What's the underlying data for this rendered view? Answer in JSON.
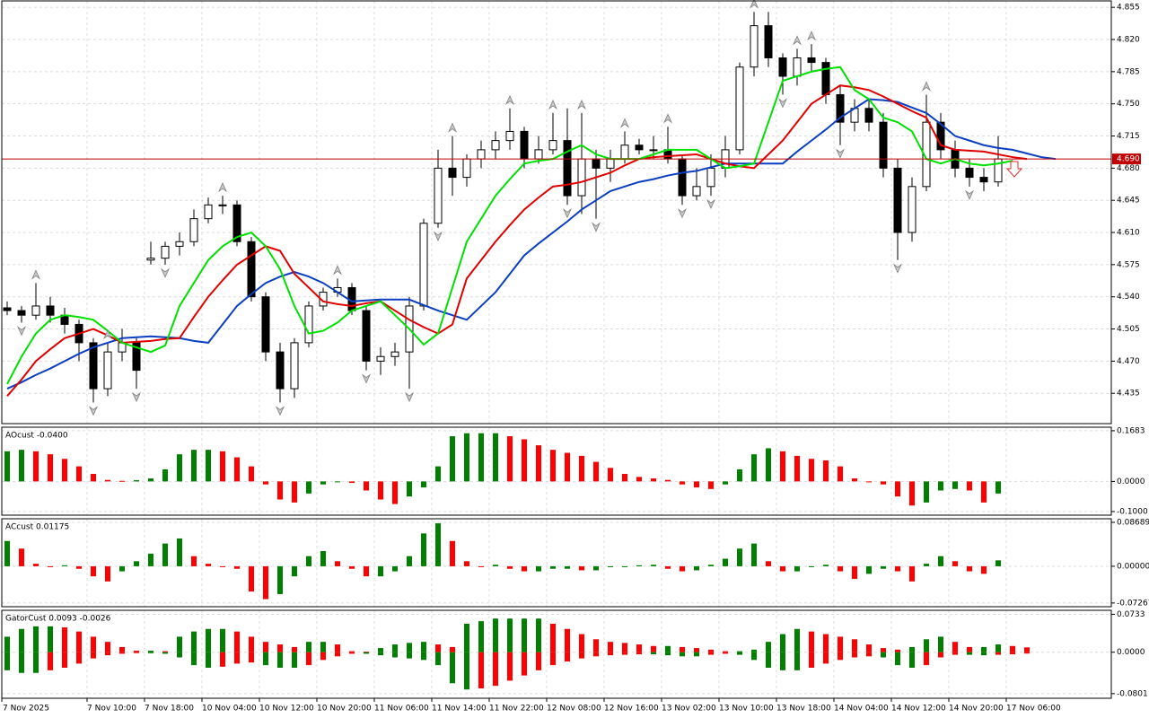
{
  "chart_data": [
    {
      "type": "candlestick",
      "ylim": [
        4.402,
        4.862
      ],
      "yticks": [
        4.855,
        {
          "value": 4.82,
          "label": "4.820"
        },
        4.785,
        {
          "value": 4.75,
          "label": "4.750"
        },
        4.715,
        {
          "value": 4.68,
          "label": "4.680"
        },
        4.645,
        {
          "value": 4.61,
          "label": "4.610"
        },
        4.575,
        {
          "value": 4.54,
          "label": "4.540"
        },
        4.505,
        {
          "value": 4.47,
          "label": "4.470"
        },
        4.435
      ],
      "grid": true,
      "bull_color": "#ffffff",
      "bear_color": "#000000",
      "candles": [
        [
          4.528,
          4.535,
          4.52,
          4.525
        ],
        [
          4.525,
          4.53,
          4.512,
          4.52
        ],
        [
          4.52,
          4.555,
          4.515,
          4.53
        ],
        [
          4.53,
          4.54,
          4.512,
          4.52
        ],
        [
          4.52,
          4.528,
          4.5,
          4.51
        ],
        [
          4.51,
          4.515,
          4.47,
          4.49
        ],
        [
          4.49,
          4.495,
          4.425,
          4.44
        ],
        [
          4.44,
          4.49,
          4.432,
          4.48
        ],
        [
          4.48,
          4.505,
          4.47,
          4.49
        ],
        [
          4.49,
          4.495,
          4.44,
          4.46
        ],
        [
          4.58,
          4.6,
          4.575,
          4.582
        ],
        [
          4.582,
          4.6,
          4.575,
          4.595
        ],
        [
          4.595,
          4.61,
          4.585,
          4.6
        ],
        [
          4.6,
          4.635,
          4.595,
          4.625
        ],
        [
          4.625,
          4.648,
          4.62,
          4.64
        ],
        [
          4.64,
          4.65,
          4.63,
          4.64
        ],
        [
          4.64,
          4.645,
          4.595,
          4.6
        ],
        [
          4.6,
          4.605,
          4.535,
          4.54
        ],
        [
          4.54,
          4.545,
          4.47,
          4.48
        ],
        [
          4.48,
          4.49,
          4.425,
          4.44
        ],
        [
          4.44,
          4.495,
          4.43,
          4.49
        ],
        [
          4.49,
          4.535,
          4.485,
          4.53
        ],
        [
          4.53,
          4.55,
          4.525,
          4.545
        ],
        [
          4.545,
          4.56,
          4.54,
          4.55
        ],
        [
          4.55,
          4.555,
          4.52,
          4.525
        ],
        [
          4.525,
          4.53,
          4.46,
          4.47
        ],
        [
          4.47,
          4.485,
          4.455,
          4.475
        ],
        [
          4.475,
          4.49,
          4.465,
          4.48
        ],
        [
          4.48,
          4.54,
          4.44,
          4.53
        ],
        [
          4.53,
          4.625,
          4.525,
          4.62
        ],
        [
          4.62,
          4.7,
          4.615,
          4.68
        ],
        [
          4.68,
          4.715,
          4.65,
          4.67
        ],
        [
          4.67,
          4.695,
          4.66,
          4.69
        ],
        [
          4.69,
          4.71,
          4.68,
          4.7
        ],
        [
          4.7,
          4.72,
          4.69,
          4.71
        ],
        [
          4.71,
          4.745,
          4.7,
          4.72
        ],
        [
          4.72,
          4.725,
          4.68,
          4.69
        ],
        [
          4.69,
          4.715,
          4.685,
          4.7
        ],
        [
          4.7,
          4.74,
          4.695,
          4.71
        ],
        [
          4.71,
          4.745,
          4.64,
          4.65
        ],
        [
          4.65,
          4.74,
          4.63,
          4.69
        ],
        [
          4.69,
          4.7,
          4.625,
          4.68
        ],
        [
          4.68,
          4.7,
          4.665,
          4.69
        ],
        [
          4.69,
          4.72,
          4.685,
          4.705
        ],
        [
          4.705,
          4.712,
          4.695,
          4.7
        ],
        [
          4.7,
          4.715,
          4.69,
          4.7
        ],
        [
          4.7,
          4.725,
          4.685,
          4.69
        ],
        [
          4.69,
          4.695,
          4.64,
          4.65
        ],
        [
          4.65,
          4.68,
          4.645,
          4.66
        ],
        [
          4.66,
          4.695,
          4.65,
          4.68
        ],
        [
          4.68,
          4.715,
          4.67,
          4.7
        ],
        [
          4.7,
          4.795,
          4.695,
          4.79
        ],
        [
          4.79,
          4.85,
          4.78,
          4.835
        ],
        [
          4.835,
          4.85,
          4.79,
          4.8
        ],
        [
          4.8,
          4.805,
          4.76,
          4.78
        ],
        [
          4.78,
          4.81,
          4.77,
          4.8
        ],
        [
          4.8,
          4.815,
          4.785,
          4.795
        ],
        [
          4.795,
          4.8,
          4.75,
          4.76
        ],
        [
          4.76,
          4.77,
          4.705,
          4.73
        ],
        [
          4.73,
          4.755,
          4.72,
          4.745
        ],
        [
          4.745,
          4.755,
          4.72,
          4.73
        ],
        [
          4.73,
          4.74,
          4.67,
          4.68
        ],
        [
          4.68,
          4.69,
          4.58,
          4.61
        ],
        [
          4.61,
          4.67,
          4.6,
          4.66
        ],
        [
          4.66,
          4.76,
          4.655,
          4.73
        ],
        [
          4.73,
          4.74,
          4.69,
          4.7
        ],
        [
          4.7,
          4.71,
          4.67,
          4.68
        ],
        [
          4.68,
          4.69,
          4.66,
          4.67
        ],
        [
          4.67,
          4.68,
          4.655,
          4.665
        ],
        [
          4.665,
          4.715,
          4.66,
          4.69
        ]
      ],
      "series": [
        {
          "color": "#0b3fbf",
          "values": [
            4.44,
            4.447,
            4.455,
            4.462,
            4.47,
            4.478,
            4.485,
            4.49,
            4.495,
            4.496,
            4.497,
            4.496,
            4.495,
            4.492,
            4.49,
            4.51,
            4.53,
            4.543,
            4.555,
            4.562,
            4.567,
            4.562,
            4.555,
            4.545,
            4.535,
            4.536,
            4.537,
            4.537,
            4.537,
            4.531,
            4.525,
            4.52,
            4.515,
            4.53,
            4.545,
            4.565,
            4.585,
            4.598,
            4.61,
            4.622,
            4.635,
            4.645,
            4.655,
            4.66,
            4.665,
            4.668,
            4.672,
            4.675,
            4.677,
            4.681,
            4.685,
            4.685,
            4.685,
            4.685,
            4.685,
            4.698,
            4.71,
            4.722,
            4.735,
            4.745,
            4.755,
            4.754,
            4.752,
            4.746,
            4.74,
            4.728,
            4.715,
            4.71,
            4.705,
            4.702,
            4.7,
            4.696,
            4.692,
            4.69
          ]
        },
        {
          "color": "#e00000",
          "values": [
            4.432,
            4.45,
            4.47,
            4.483,
            4.495,
            4.5,
            4.505,
            4.498,
            4.49,
            4.491,
            4.492,
            4.494,
            4.495,
            4.518,
            4.54,
            4.558,
            4.575,
            4.585,
            4.595,
            4.59,
            4.565,
            4.55,
            4.535,
            4.532,
            4.53,
            4.533,
            4.535,
            4.525,
            4.515,
            4.507,
            4.5,
            4.51,
            4.56,
            4.58,
            4.6,
            4.618,
            4.635,
            4.648,
            4.66,
            4.662,
            4.665,
            4.67,
            4.675,
            4.683,
            4.69,
            4.692,
            4.693,
            4.694,
            4.695,
            4.69,
            4.685,
            4.682,
            4.68,
            4.695,
            4.71,
            4.73,
            4.75,
            4.76,
            4.77,
            4.768,
            4.765,
            4.758,
            4.75,
            4.742,
            4.735,
            4.705,
            4.7,
            4.699,
            4.698,
            4.695,
            4.692,
            4.69
          ]
        },
        {
          "color": "#00e000",
          "values": [
            4.445,
            4.475,
            4.5,
            4.515,
            4.52,
            4.518,
            4.515,
            4.503,
            4.49,
            4.485,
            4.48,
            4.487,
            4.53,
            4.555,
            4.58,
            4.595,
            4.605,
            4.61,
            4.595,
            4.57,
            4.53,
            4.5,
            4.503,
            4.512,
            4.525,
            4.53,
            4.535,
            4.52,
            4.505,
            4.488,
            4.5,
            4.55,
            4.6,
            4.625,
            4.65,
            4.668,
            4.685,
            4.688,
            4.69,
            4.698,
            4.705,
            4.695,
            4.69,
            4.69,
            4.69,
            4.695,
            4.7,
            4.7,
            4.7,
            4.69,
            4.68,
            4.682,
            4.685,
            4.73,
            4.775,
            4.78,
            4.785,
            4.788,
            4.79,
            4.765,
            4.755,
            4.735,
            4.73,
            4.72,
            4.69,
            4.685,
            4.69,
            4.685,
            4.683,
            4.685,
            4.688
          ]
        }
      ],
      "fractals_up": [
        2,
        7,
        15,
        23,
        31,
        35,
        38,
        40,
        43,
        46,
        52,
        55,
        56,
        64
      ],
      "fractals_down": [
        1,
        6,
        9,
        11,
        19,
        25,
        28,
        30,
        39,
        41,
        47,
        49,
        54,
        58,
        62,
        67
      ],
      "price_line": {
        "value": 4.69,
        "label": "4.690",
        "color": "#c00000"
      }
    },
    {
      "type": "histogram",
      "label": "AOcust -0.0400",
      "ylim": [
        -0.112,
        0.18
      ],
      "yticks": [
        0.1683,
        {
          "value": 0,
          "label": "0.0000"
        },
        {
          "value": -0.1,
          "label": "-0.1000"
        }
      ],
      "grid": true,
      "up_color": "#008000",
      "down_color": "#ff0000",
      "values": [
        0.1,
        0.105,
        0.1,
        0.09,
        0.075,
        0.05,
        0.025,
        0.005,
        0.002,
        0.004,
        0.01,
        0.04,
        0.09,
        0.105,
        0.105,
        0.1,
        0.08,
        0.05,
        -0.01,
        -0.06,
        -0.07,
        -0.04,
        -0.01,
        0,
        -0.005,
        -0.03,
        -0.06,
        -0.075,
        -0.05,
        -0.02,
        0.05,
        0.15,
        0.16,
        0.16,
        0.16,
        0.15,
        0.14,
        0.12,
        0.105,
        0.095,
        0.085,
        0.065,
        0.045,
        0.025,
        0.015,
        0.01,
        0.005,
        -0.01,
        -0.02,
        -0.025,
        -0.01,
        0.04,
        0.09,
        0.11,
        0.1,
        0.085,
        0.075,
        0.07,
        0.05,
        0.01,
        0,
        -0.01,
        -0.05,
        -0.08,
        -0.07,
        -0.03,
        -0.025,
        -0.03,
        -0.07,
        -0.04
      ]
    },
    {
      "type": "histogram",
      "label": "ACcust 0.01175",
      "ylim": [
        -0.08,
        0.094
      ],
      "yticks": [
        0.08689,
        {
          "value": 0,
          "label": "0.00000"
        },
        -0.07267
      ],
      "grid": true,
      "up_color": "#008000",
      "down_color": "#ff0000",
      "values": [
        0.05,
        0.035,
        0.005,
        0,
        0.002,
        -0.005,
        -0.02,
        -0.03,
        -0.01,
        0.01,
        0.025,
        0.045,
        0.055,
        0.02,
        0.005,
        0,
        -0.005,
        -0.05,
        -0.065,
        -0.055,
        -0.02,
        0.02,
        0.03,
        0.01,
        -0.005,
        -0.02,
        -0.02,
        -0.01,
        0.02,
        0.065,
        0.085,
        0.05,
        0.01,
        0,
        0.003,
        -0.005,
        -0.01,
        -0.01,
        -0.005,
        -0.005,
        -0.008,
        -0.008,
        0,
        0,
        0.002,
        0.003,
        -0.005,
        -0.01,
        -0.008,
        0.003,
        0.015,
        0.035,
        0.045,
        0.01,
        -0.01,
        -0.01,
        0,
        0.003,
        -0.01,
        -0.025,
        -0.015,
        -0.005,
        -0.01,
        -0.03,
        0.005,
        0.02,
        0.01,
        -0.01,
        -0.015,
        0.01175
      ]
    },
    {
      "type": "gator",
      "label": "GatorCust 0.0093 -0.0026",
      "ylim": [
        -0.089,
        0.081
      ],
      "yticks": [
        0.0733,
        {
          "value": 0,
          "label": "0.0000"
        },
        -0.0801
      ],
      "grid": true,
      "up_color": "#008000",
      "down_color": "#ff0000",
      "upper": [
        0.03,
        0.045,
        0.05,
        0.05,
        0.048,
        0.04,
        0.03,
        0.02,
        0.01,
        0.003,
        0.003,
        0.002,
        0.03,
        0.04,
        0.045,
        0.045,
        0.04,
        0.03,
        0.02,
        0.015,
        0.01,
        0.02,
        0.02,
        0.015,
        0.002,
        0.001,
        0.008,
        0.015,
        0.018,
        0.02,
        0.015,
        0.01,
        0.055,
        0.06,
        0.065,
        0.065,
        0.065,
        0.065,
        0.055,
        0.045,
        0.035,
        0.025,
        0.02,
        0.018,
        0.015,
        0.012,
        0.012,
        0.01,
        0.008,
        0.005,
        0.002,
        0.002,
        0.005,
        0.02,
        0.035,
        0.045,
        0.04,
        0.035,
        0.03,
        0.025,
        0.015,
        0.008,
        0.005,
        0.01,
        0.025,
        0.03,
        0.02,
        0.01,
        0.01,
        0.015,
        0.012,
        0.0093
      ],
      "lower": [
        -0.035,
        -0.04,
        -0.04,
        -0.035,
        -0.03,
        -0.022,
        -0.012,
        -0.006,
        -0.003,
        -0.001,
        -0.002,
        -0.003,
        -0.01,
        -0.025,
        -0.03,
        -0.028,
        -0.022,
        -0.02,
        -0.025,
        -0.03,
        -0.03,
        -0.025,
        -0.015,
        -0.008,
        -0.003,
        -0.003,
        -0.006,
        -0.01,
        -0.012,
        -0.015,
        -0.025,
        -0.06,
        -0.072,
        -0.07,
        -0.065,
        -0.055,
        -0.045,
        -0.035,
        -0.025,
        -0.018,
        -0.012,
        -0.008,
        -0.006,
        -0.005,
        -0.004,
        -0.004,
        -0.006,
        -0.008,
        -0.008,
        -0.005,
        -0.003,
        -0.005,
        -0.015,
        -0.03,
        -0.035,
        -0.035,
        -0.03,
        -0.022,
        -0.015,
        -0.01,
        -0.008,
        -0.01,
        -0.025,
        -0.03,
        -0.025,
        -0.01,
        -0.005,
        -0.005,
        -0.006,
        -0.005,
        -0.004,
        -0.0026
      ],
      "time_labels": [
        "7 Nov 2025",
        "7 Nov 10:00",
        "7 Nov 18:00",
        "10 Nov 04:00",
        "10 Nov 12:00",
        "10 Nov 20:00",
        "11 Nov 06:00",
        "11 Nov 14:00",
        "11 Nov 22:00",
        "12 Nov 08:00",
        "12 Nov 16:00",
        "13 Nov 02:00",
        "13 Nov 10:00",
        "13 Nov 18:00",
        "14 Nov 04:00",
        "14 Nov 12:00",
        "14 Nov 20:00",
        "17 Nov 06:00"
      ]
    }
  ]
}
